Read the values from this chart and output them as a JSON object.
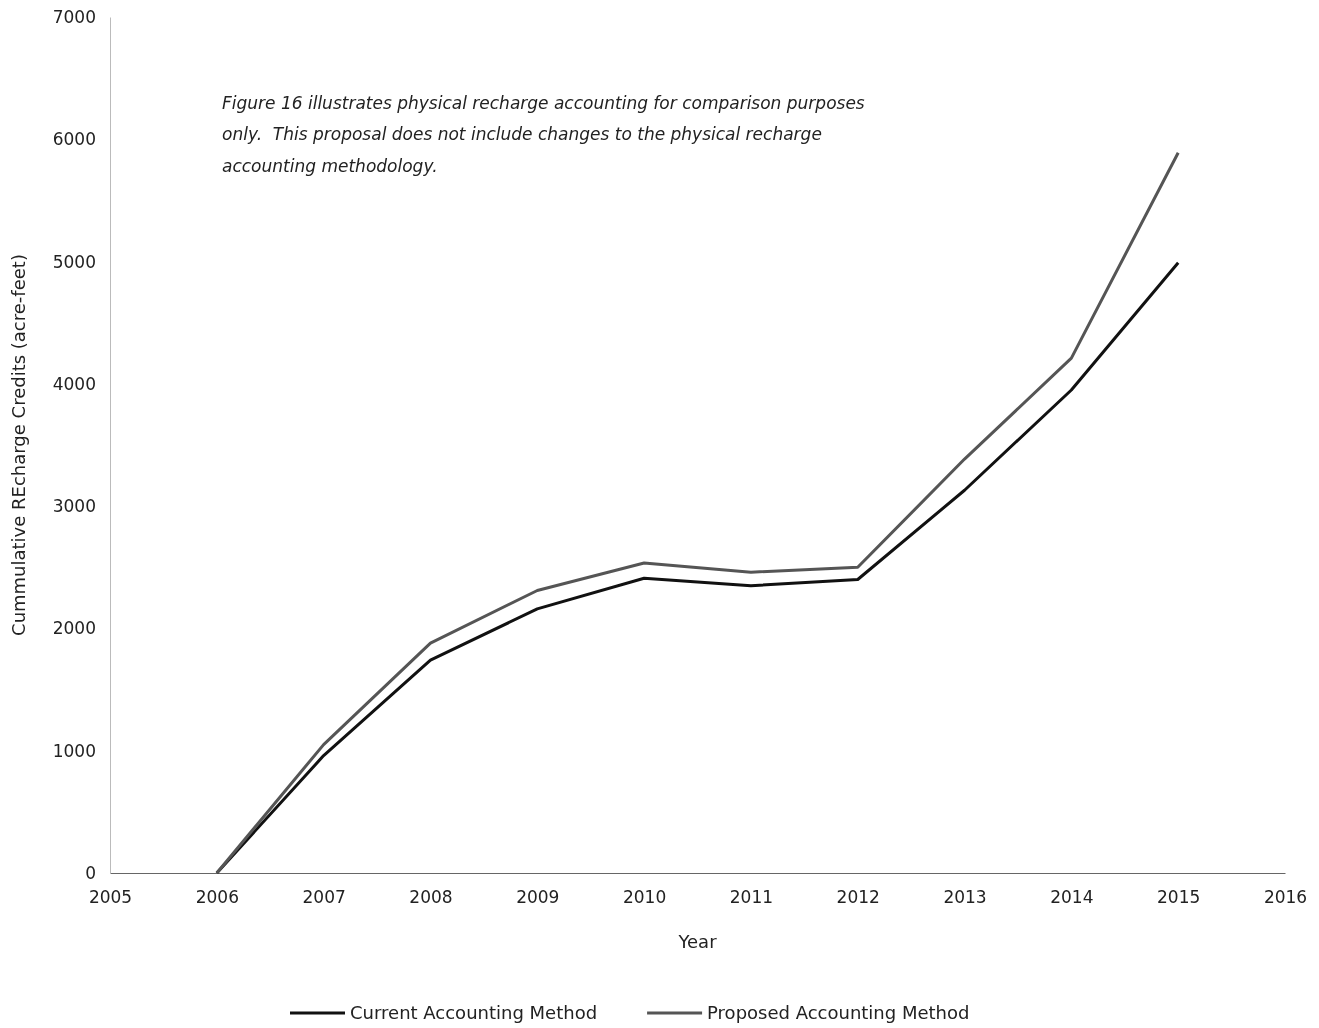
{
  "chart_data": {
    "type": "line",
    "xlabel": "Year",
    "ylabel": "Cummulative REcharge Credits (acre-feet)",
    "annotations": [
      "Figure 16 illustrates physical recharge accounting for comparison purposes only.  This proposal does not include changes to the physical recharge accounting methodology."
    ],
    "x": [
      2006,
      2007,
      2008,
      2009,
      2010,
      2011,
      2012,
      2013,
      2014,
      2015
    ],
    "series": [
      {
        "name": "Current Accounting Method",
        "color": "#111111",
        "values": [
          0,
          960,
          1740,
          2160,
          2410,
          2350,
          2400,
          3130,
          3950,
          4990
        ]
      },
      {
        "name": "Proposed Accounting Method",
        "color": "#555555",
        "values": [
          0,
          1050,
          1880,
          2310,
          2535,
          2460,
          2500,
          3385,
          4210,
          5890
        ]
      }
    ],
    "xlim": [
      2005,
      2016
    ],
    "xticks": [
      2005,
      2006,
      2007,
      2008,
      2009,
      2010,
      2011,
      2012,
      2013,
      2014,
      2015,
      2016
    ],
    "ylim": [
      0,
      7000
    ],
    "yticks": [
      0,
      1000,
      2000,
      3000,
      4000,
      5000,
      6000,
      7000
    ],
    "grid": false,
    "legend": "bottom",
    "marker": "none",
    "line_style": "solid"
  }
}
